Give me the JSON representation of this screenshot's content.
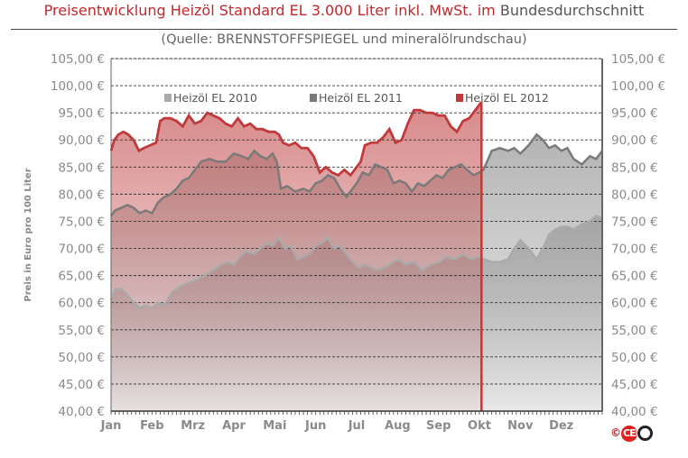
{
  "header": {
    "title_main": "Preisentwicklung Heizöl Standard EL 3.000 Liter inkl. MwSt. im",
    "title_rest": "Bundesdurchschnitt",
    "subtitle": "(Quelle: BRENNSTOFFSPIEGEL  und mineralölrundschau)"
  },
  "footer": {
    "copyright": "©",
    "logo_text": "CEB"
  },
  "chart_data": {
    "type": "area",
    "ylabel": "Preis in Euro pro 100 Liter",
    "ylim": [
      40,
      105
    ],
    "yticks": [
      "40,00 €",
      "45,00 €",
      "50,00 €",
      "55,00 €",
      "60,00 €",
      "65,00 €",
      "70,00 €",
      "75,00 €",
      "80,00 €",
      "85,00 €",
      "90,00 €",
      "95,00 €",
      "100,00 €",
      "105,00 €"
    ],
    "ytick_values": [
      40,
      45,
      50,
      55,
      60,
      65,
      70,
      75,
      80,
      85,
      90,
      95,
      100,
      105
    ],
    "xticks": [
      "Jan",
      "Feb",
      "Mrz",
      "Apr",
      "Mai",
      "Jun",
      "Jul",
      "Aug",
      "Sep",
      "Okt",
      "Nov",
      "Dez"
    ],
    "xlim": [
      0,
      12
    ],
    "legend_position": "top",
    "grid": true,
    "colors": {
      "series_2012": "#c0393b",
      "series_2011": "#7a7a7a",
      "series_2010": "#aaaaaa",
      "fill_2012": "#c85a5a",
      "fill_gray": "#9a9a9a"
    },
    "series": [
      {
        "name": "Heizöl EL 2010",
        "x": [
          0.0,
          0.1,
          0.25,
          0.4,
          0.55,
          0.7,
          0.85,
          1.0,
          1.15,
          1.3,
          1.5,
          1.7,
          1.85,
          2.0,
          2.15,
          2.3,
          2.5,
          2.7,
          2.85,
          3.0,
          3.15,
          3.3,
          3.5,
          3.65,
          3.8,
          3.95,
          4.1,
          4.25,
          4.4,
          4.55,
          4.7,
          4.85,
          5.0,
          5.15,
          5.3,
          5.45,
          5.6,
          5.75,
          5.9,
          6.05,
          6.2,
          6.35,
          6.5,
          6.7,
          6.9,
          7.05,
          7.2,
          7.4,
          7.6,
          7.8,
          8.0,
          8.2,
          8.4,
          8.6,
          8.8,
          9.0,
          9.1,
          9.3,
          9.5,
          9.7,
          9.85,
          10.0,
          10.2,
          10.4,
          10.55,
          10.7,
          10.85,
          11.0,
          11.15,
          11.3,
          11.5,
          11.7,
          11.85,
          12.0
        ],
        "values": [
          60.5,
          62.5,
          62.5,
          61.5,
          60.0,
          59.0,
          59.5,
          59.0,
          60.0,
          59.5,
          62.0,
          63.0,
          63.5,
          64.0,
          64.5,
          65.0,
          66.0,
          67.0,
          67.5,
          67.0,
          68.5,
          69.5,
          69.0,
          70.0,
          71.0,
          70.5,
          72.0,
          70.0,
          70.5,
          68.0,
          68.5,
          69.0,
          70.5,
          71.0,
          72.0,
          70.0,
          70.5,
          69.0,
          67.5,
          66.5,
          67.0,
          66.5,
          66.0,
          66.5,
          67.5,
          68.0,
          67.0,
          67.5,
          66.0,
          67.0,
          67.5,
          68.5,
          68.0,
          69.0,
          68.0,
          68.5,
          68.0,
          67.5,
          67.5,
          68.0,
          70.0,
          71.5,
          70.0,
          68.0,
          70.0,
          72.5,
          73.5,
          74.0,
          74.0,
          73.5,
          74.5,
          75.0,
          76.0,
          75.5
        ]
      },
      {
        "name": "Heizöl EL 2011",
        "x": [
          0.0,
          0.1,
          0.25,
          0.4,
          0.55,
          0.7,
          0.85,
          1.0,
          1.15,
          1.3,
          1.45,
          1.6,
          1.75,
          1.9,
          2.0,
          2.2,
          2.4,
          2.6,
          2.8,
          3.0,
          3.2,
          3.35,
          3.5,
          3.65,
          3.8,
          3.95,
          4.05,
          4.15,
          4.3,
          4.5,
          4.7,
          4.85,
          5.0,
          5.15,
          5.3,
          5.45,
          5.6,
          5.75,
          5.85,
          6.0,
          6.15,
          6.3,
          6.45,
          6.6,
          6.75,
          6.9,
          7.05,
          7.2,
          7.35,
          7.5,
          7.65,
          7.8,
          7.95,
          8.1,
          8.25,
          8.4,
          8.55,
          8.7,
          8.85,
          9.0,
          9.1,
          9.3,
          9.5,
          9.7,
          9.85,
          10.0,
          10.2,
          10.4,
          10.55,
          10.7,
          10.85,
          11.0,
          11.15,
          11.3,
          11.5,
          11.7,
          11.85,
          12.0
        ],
        "values": [
          76.0,
          77.0,
          77.5,
          78.0,
          77.5,
          76.5,
          77.0,
          76.5,
          78.5,
          79.5,
          80.0,
          81.0,
          82.5,
          83.0,
          84.0,
          86.0,
          86.5,
          86.0,
          86.0,
          87.5,
          87.0,
          86.5,
          88.0,
          87.0,
          86.5,
          87.5,
          86.0,
          81.0,
          81.5,
          80.5,
          81.0,
          80.5,
          82.0,
          82.5,
          83.5,
          83.0,
          81.0,
          79.5,
          80.5,
          82.0,
          84.0,
          83.5,
          85.5,
          85.0,
          84.5,
          82.0,
          82.5,
          82.0,
          80.5,
          82.0,
          81.5,
          82.5,
          83.5,
          83.0,
          84.5,
          85.0,
          85.5,
          84.5,
          83.5,
          84.0,
          84.5,
          88.0,
          88.5,
          88.0,
          88.5,
          87.5,
          89.0,
          91.0,
          90.0,
          88.5,
          89.0,
          88.0,
          88.5,
          86.5,
          85.5,
          87.0,
          86.5,
          88.0
        ]
      },
      {
        "name": "Heizöl EL 2012",
        "x": [
          0.0,
          0.08,
          0.18,
          0.3,
          0.42,
          0.55,
          0.68,
          0.8,
          0.95,
          1.1,
          1.2,
          1.3,
          1.45,
          1.6,
          1.75,
          1.9,
          2.05,
          2.2,
          2.35,
          2.5,
          2.65,
          2.8,
          2.95,
          3.1,
          3.25,
          3.4,
          3.55,
          3.7,
          3.85,
          4.0,
          4.1,
          4.2,
          4.35,
          4.5,
          4.65,
          4.8,
          4.95,
          5.1,
          5.25,
          5.4,
          5.55,
          5.7,
          5.85,
          6.0,
          6.1,
          6.2,
          6.35,
          6.5,
          6.65,
          6.8,
          6.95,
          7.1,
          7.25,
          7.4,
          7.55,
          7.7,
          7.85,
          8.0,
          8.15,
          8.3,
          8.45,
          8.6,
          8.75,
          8.9,
          9.0,
          9.05
        ],
        "values": [
          88.0,
          90.0,
          91.0,
          91.5,
          91.0,
          90.0,
          88.0,
          88.5,
          89.0,
          89.5,
          93.5,
          94.0,
          94.0,
          93.5,
          92.5,
          94.5,
          93.0,
          93.5,
          95.0,
          94.5,
          94.0,
          93.0,
          92.5,
          94.0,
          92.5,
          93.0,
          92.0,
          92.0,
          91.5,
          91.5,
          91.0,
          89.5,
          89.0,
          89.5,
          88.5,
          88.5,
          87.0,
          84.0,
          85.0,
          84.0,
          83.5,
          84.5,
          83.5,
          85.0,
          86.0,
          89.0,
          89.5,
          89.5,
          90.5,
          92.0,
          89.5,
          90.0,
          93.0,
          95.5,
          95.5,
          95.0,
          95.0,
          94.5,
          94.5,
          92.5,
          91.5,
          93.5,
          94.0,
          95.5,
          96.5,
          97.0
        ]
      }
    ]
  }
}
